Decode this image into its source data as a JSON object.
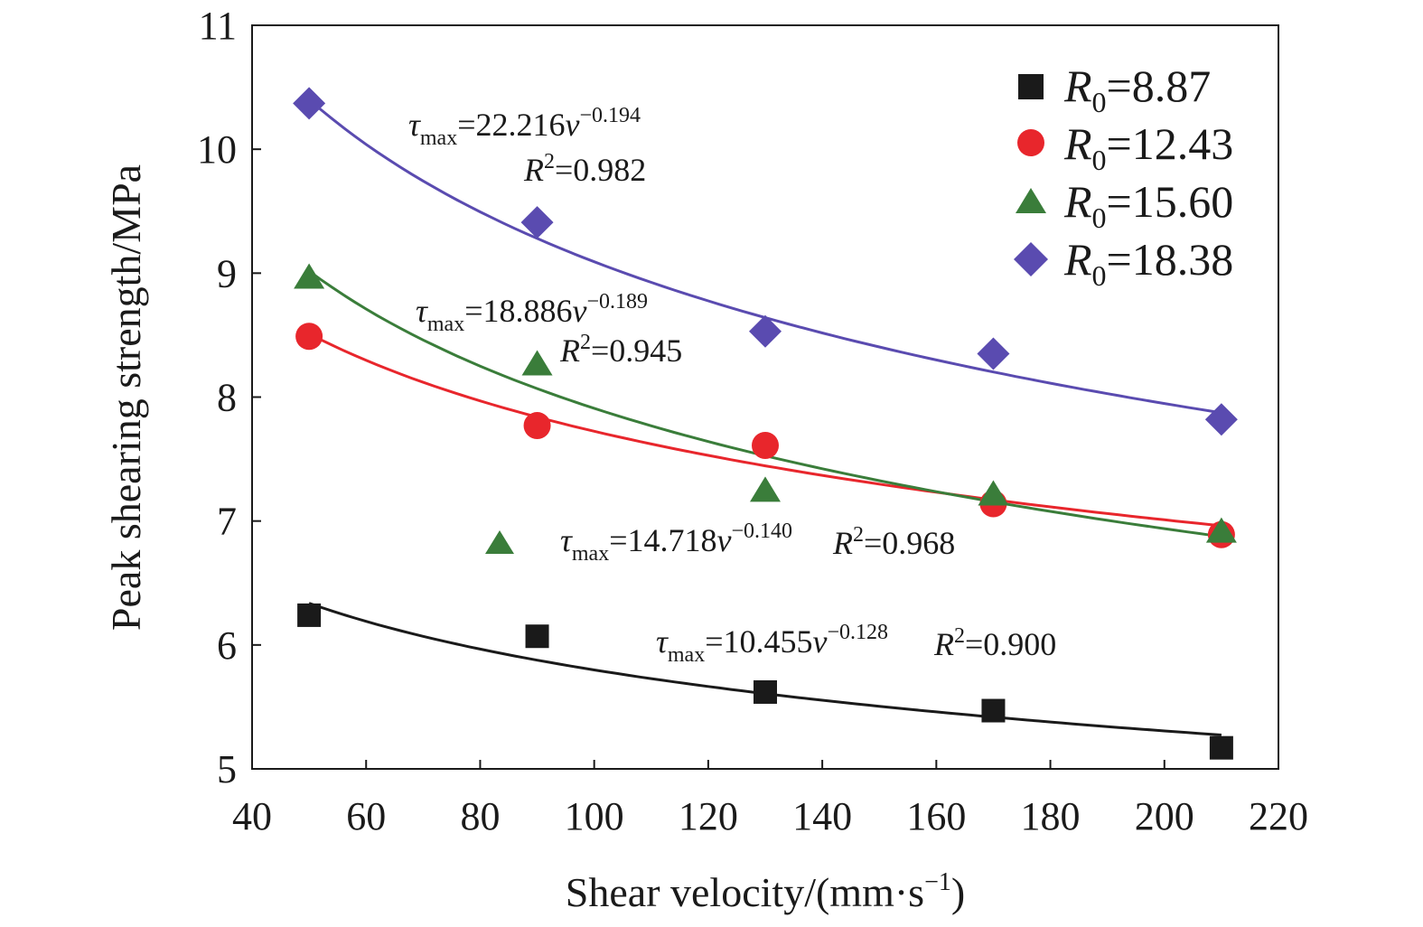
{
  "chart_data": {
    "type": "scatter",
    "xlabel": "Shear velocity/(mm·s",
    "xlabel_sup": "−1",
    "xlabel_end": ")",
    "ylabel": "Peak shearing strength/MPa",
    "xlim": [
      40,
      220
    ],
    "ylim": [
      5,
      11
    ],
    "xticks": [
      40,
      60,
      80,
      100,
      120,
      140,
      160,
      180,
      200,
      220
    ],
    "yticks": [
      5,
      6,
      7,
      8,
      9,
      10,
      11
    ],
    "grid": false,
    "legend": {
      "placement": "top-right"
    },
    "x": [
      50,
      90,
      130,
      170,
      210
    ],
    "series": [
      {
        "key": "r887",
        "name_prefix": "R",
        "name_sub": "0",
        "name_value": "=8.87",
        "marker": "square",
        "color": "#1a1a1a",
        "values": [
          6.24,
          6.07,
          5.62,
          5.47,
          5.17
        ],
        "fit": {
          "a": 10.455,
          "b": -0.128
        },
        "equation": {
          "tau": "τ",
          "sub": "max",
          "mid": "=10.455",
          "v": "v",
          "exp": "−0.128",
          "r2_label": "R",
          "r2_sup": "2",
          "r2_value": "=0.900"
        }
      },
      {
        "key": "r1243",
        "name_prefix": "R",
        "name_sub": "0",
        "name_value": "=12.43",
        "marker": "circle",
        "color": "#e8262c",
        "values": [
          8.49,
          7.77,
          7.61,
          7.14,
          6.89
        ],
        "fit": {
          "a": 14.718,
          "b": -0.14
        },
        "equation": {
          "tau": "τ",
          "sub": "max",
          "mid": "=14.718",
          "v": "v",
          "exp": "−0.140",
          "r2_label": "R",
          "r2_sup": "2",
          "r2_value": "=0.968"
        }
      },
      {
        "key": "r1560",
        "name_prefix": "R",
        "name_sub": "0",
        "name_value": "=15.60",
        "marker": "triangle",
        "color": "#3a7d3a",
        "values": [
          8.97,
          8.27,
          7.25,
          7.22,
          6.92
        ],
        "fit": {
          "a": 18.886,
          "b": -0.189
        },
        "equation": {
          "tau": "τ",
          "sub": "max",
          "mid": "=18.886",
          "v": "v",
          "exp": "−0.189",
          "r2_label": "R",
          "r2_sup": "2",
          "r2_value": "=0.945"
        }
      },
      {
        "key": "r1838",
        "name_prefix": "R",
        "name_sub": "0",
        "name_value": "=18.38",
        "marker": "diamond",
        "color": "#5a4bb0",
        "values": [
          10.37,
          9.41,
          8.53,
          8.35,
          7.82
        ],
        "fit": {
          "a": 22.216,
          "b": -0.194
        },
        "equation": {
          "tau": "τ",
          "sub": "max",
          "mid": "=22.216",
          "v": "v",
          "exp": "−0.194",
          "r2_label": "R",
          "r2_sup": "2",
          "r2_value": "=0.982"
        }
      }
    ]
  }
}
